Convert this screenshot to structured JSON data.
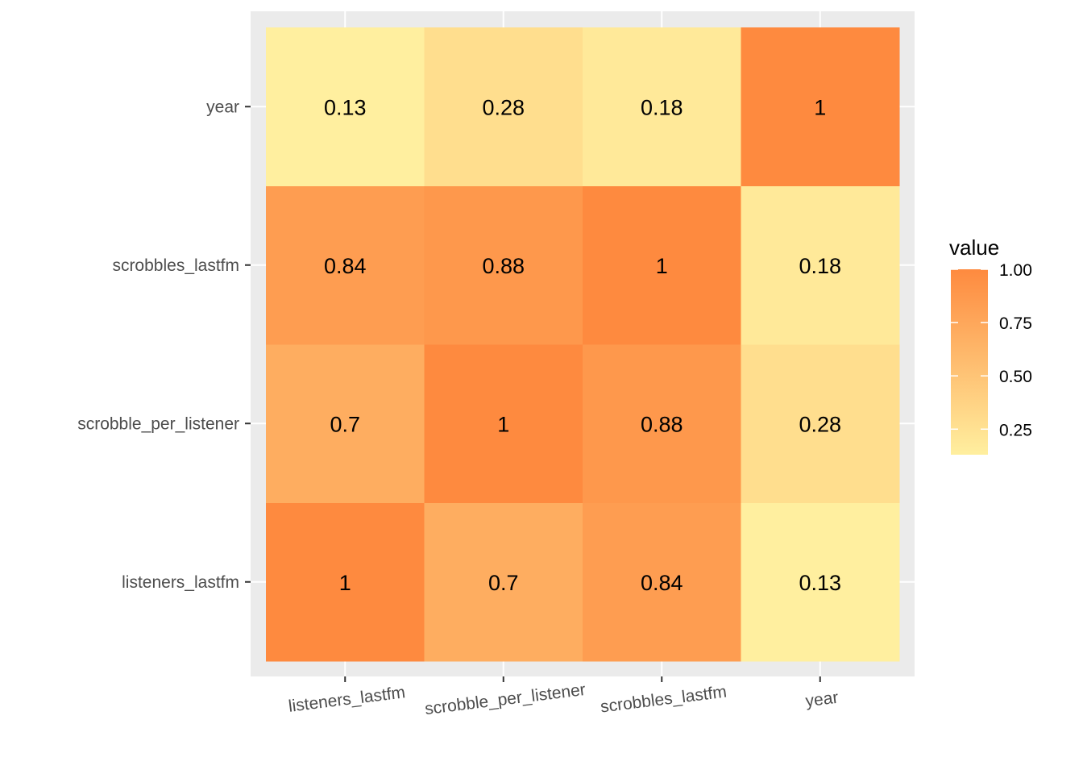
{
  "chart_data": {
    "type": "heatmap",
    "title": "",
    "xlabel": "",
    "ylabel": "",
    "x_categories": [
      "listeners_lastfm",
      "scrobble_per_listener",
      "scrobbles_lastfm",
      "year"
    ],
    "y_categories": [
      "listeners_lastfm",
      "scrobble_per_listener",
      "scrobbles_lastfm",
      "year"
    ],
    "values": [
      [
        1,
        0.7,
        0.84,
        0.13
      ],
      [
        0.7,
        1,
        0.88,
        0.28
      ],
      [
        0.84,
        0.88,
        1,
        0.18
      ],
      [
        0.13,
        0.28,
        0.18,
        1
      ]
    ],
    "cell_labels": [
      [
        "1",
        "0.7",
        "0.84",
        "0.13"
      ],
      [
        "0.7",
        "1",
        "0.88",
        "0.28"
      ],
      [
        "0.84",
        "0.88",
        "1",
        "0.18"
      ],
      [
        "0.13",
        "0.28",
        "0.18",
        "1"
      ]
    ],
    "legend": {
      "title": "value",
      "ticks": [
        1.0,
        0.75,
        0.5,
        0.25
      ],
      "tick_labels": [
        "1.00",
        "0.75",
        "0.50",
        "0.25"
      ],
      "range": [
        0.13,
        1
      ],
      "placement": "right"
    },
    "color_scale": {
      "low": "#ffef9f",
      "high": "#fe8a3f"
    },
    "panel_background": "#ebebeb",
    "grid_color": "#ffffff",
    "grid": true
  }
}
